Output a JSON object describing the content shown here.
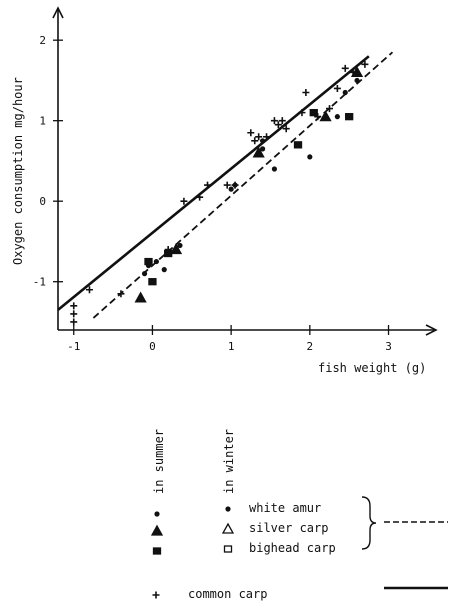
{
  "chart_data": {
    "type": "scatter",
    "xlabel": "fish weight (g)",
    "ylabel": "Oxygen consumption  mg/hour",
    "xlim": [
      -1.2,
      3.4
    ],
    "ylim": [
      -1.6,
      2.35
    ],
    "x_ticks": [
      -1,
      0,
      1,
      2,
      3
    ],
    "x_tick_labels": [
      "-1",
      "0",
      "1",
      "2",
      "3"
    ],
    "y_ticks": [
      -1,
      0,
      1,
      2
    ],
    "y_tick_labels": [
      "-1",
      "0",
      "1",
      "2"
    ],
    "grid": false,
    "legend": {
      "placement": "bottom",
      "season_headers": [
        "in summer",
        "in winter"
      ],
      "entries": [
        "white amur",
        "silver carp",
        "bighead carp",
        "common carp"
      ]
    },
    "lines": [
      {
        "style": "solid",
        "x": [
          -1.2,
          2.75
        ],
        "y": [
          -1.35,
          1.8
        ]
      },
      {
        "style": "dashed",
        "x": [
          -0.75,
          3.05
        ],
        "y": [
          -1.45,
          1.85
        ]
      }
    ],
    "series": [
      {
        "name": "white amur",
        "marker": "dot",
        "points": [
          [
            -0.05,
            -0.8
          ],
          [
            0.05,
            -0.75
          ],
          [
            0.15,
            -0.85
          ],
          [
            0.35,
            -0.55
          ],
          [
            1.0,
            0.15
          ],
          [
            1.4,
            0.65
          ],
          [
            1.55,
            0.4
          ],
          [
            1.85,
            0.7
          ],
          [
            2.0,
            0.55
          ],
          [
            2.35,
            1.05
          ],
          [
            2.45,
            1.35
          ],
          [
            1.4,
            0.75
          ],
          [
            1.05,
            0.2
          ],
          [
            2.6,
            1.5
          ],
          [
            -0.1,
            -0.9
          ]
        ]
      },
      {
        "name": "silver carp",
        "marker": "triangle",
        "points": [
          [
            -0.15,
            -1.2
          ],
          [
            0.3,
            -0.6
          ],
          [
            1.35,
            0.6
          ],
          [
            2.2,
            1.05
          ],
          [
            2.6,
            1.6
          ]
        ]
      },
      {
        "name": "bighead carp",
        "marker": "square",
        "points": [
          [
            0.2,
            -0.65
          ],
          [
            0.0,
            -1.0
          ],
          [
            1.85,
            0.7
          ],
          [
            2.05,
            1.1
          ],
          [
            2.5,
            1.05
          ],
          [
            -0.05,
            -0.75
          ]
        ]
      },
      {
        "name": "common carp",
        "marker": "plus",
        "points": [
          [
            -1.0,
            -1.3
          ],
          [
            -0.8,
            -1.1
          ],
          [
            -0.4,
            -1.15
          ],
          [
            0.2,
            -0.6
          ],
          [
            0.4,
            0.0
          ],
          [
            0.6,
            0.05
          ],
          [
            0.7,
            0.2
          ],
          [
            0.95,
            0.2
          ],
          [
            1.05,
            0.2
          ],
          [
            1.25,
            0.85
          ],
          [
            1.35,
            0.8
          ],
          [
            1.45,
            0.8
          ],
          [
            1.6,
            0.95
          ],
          [
            1.65,
            1.0
          ],
          [
            1.7,
            0.9
          ],
          [
            1.9,
            1.1
          ],
          [
            1.95,
            1.35
          ],
          [
            2.1,
            1.05
          ],
          [
            2.35,
            1.4
          ],
          [
            2.55,
            1.6
          ],
          [
            2.7,
            1.7
          ],
          [
            2.45,
            1.65
          ],
          [
            -1.0,
            -1.5
          ],
          [
            -1.0,
            -1.4
          ],
          [
            1.3,
            0.75
          ],
          [
            1.55,
            1.0
          ],
          [
            2.25,
            1.15
          ]
        ]
      }
    ]
  }
}
